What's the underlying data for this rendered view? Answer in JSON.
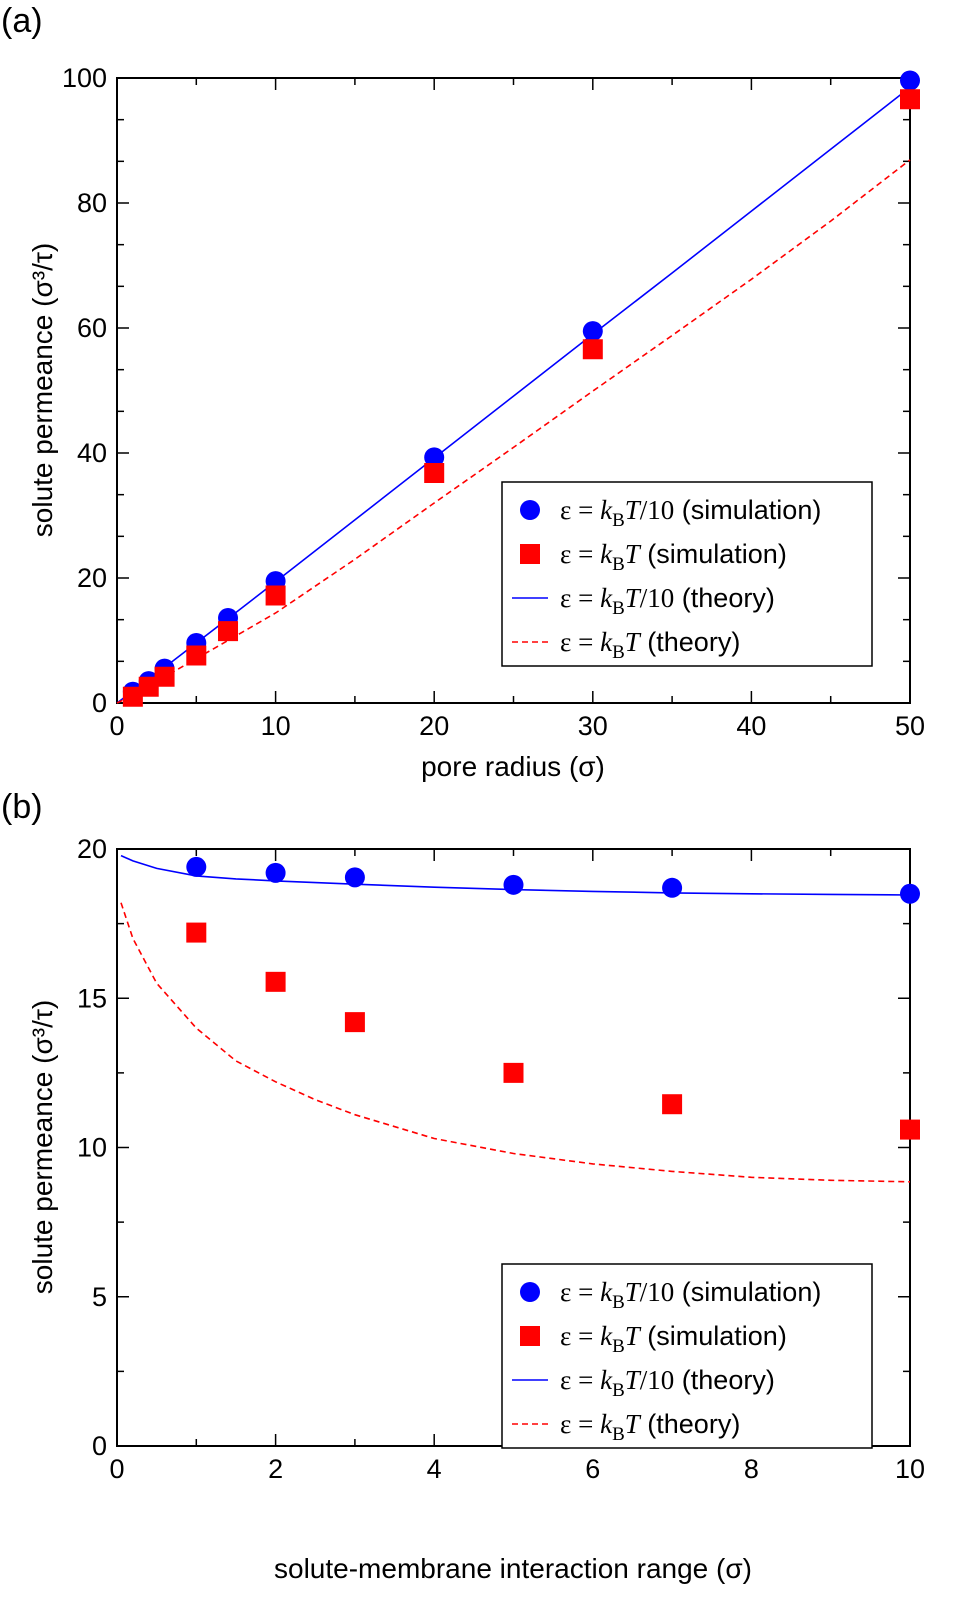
{
  "chart_data": [
    {
      "type": "scatter",
      "panel_label": "(a)",
      "xlabel": "pore radius  (σ)",
      "ylabel": "solute permeance  (σ³/τ)",
      "xlim": [
        0,
        50
      ],
      "ylim": [
        0,
        100
      ],
      "xticks": [
        "0",
        "10",
        "20",
        "30",
        "40",
        "50"
      ],
      "yticks": [
        "0",
        "20",
        "40",
        "60",
        "80",
        "100"
      ],
      "grid": false,
      "legend_position": "bottom-right",
      "series": [
        {
          "name": "ε = kBT/10 (simulation)",
          "kind": "circle",
          "color": "#0000ff",
          "x": [
            1,
            2,
            3,
            5,
            7,
            10,
            20,
            30,
            50
          ],
          "y": [
            1.8,
            3.5,
            5.5,
            9.6,
            13.6,
            19.5,
            39.3,
            59.5,
            99.6
          ]
        },
        {
          "name": "ε = kBT (simulation)",
          "kind": "square",
          "color": "#ff0000",
          "x": [
            1,
            2,
            3,
            5,
            7,
            10,
            20,
            30,
            50
          ],
          "y": [
            1.0,
            2.6,
            4.2,
            7.6,
            11.5,
            17.2,
            36.8,
            56.6,
            96.6
          ]
        },
        {
          "name": "ε = kBT/10 (theory)",
          "kind": "line",
          "color": "#0000ff",
          "x": [
            0,
            1,
            2,
            3,
            5,
            7,
            10,
            15,
            20,
            25,
            30,
            35,
            40,
            45,
            50
          ],
          "y": [
            0,
            1.9,
            3.8,
            5.7,
            9.6,
            13.5,
            19.4,
            29.3,
            39.2,
            49.1,
            59.0,
            68.8,
            78.7,
            88.6,
            98.5
          ]
        },
        {
          "name": "ε = kBT (theory)",
          "kind": "dashed",
          "color": "#ff0000",
          "x": [
            0,
            1,
            2,
            3,
            5,
            7,
            10,
            15,
            20,
            25,
            30,
            35,
            40,
            45,
            50
          ],
          "y": [
            0,
            1.2,
            2.7,
            4.2,
            7.1,
            10.0,
            14.4,
            23.0,
            32.0,
            40.9,
            49.9,
            58.8,
            67.8,
            77.1,
            86.9
          ]
        }
      ],
      "legend": [
        {
          "symbol": "circle",
          "color": "#0000ff",
          "parts": [
            "ε = ",
            "k",
            "B",
            "T",
            "/10",
            " (simulation)"
          ]
        },
        {
          "symbol": "square",
          "color": "#ff0000",
          "parts": [
            "ε = ",
            "k",
            "B",
            "T",
            "",
            " (simulation)"
          ]
        },
        {
          "symbol": "line",
          "color": "#0000ff",
          "parts": [
            "ε = ",
            "k",
            "B",
            "T",
            "/10",
            " (theory)"
          ]
        },
        {
          "symbol": "dashed",
          "color": "#ff0000",
          "parts": [
            "ε = ",
            "k",
            "B",
            "T",
            "",
            " (theory)"
          ]
        }
      ]
    },
    {
      "type": "scatter",
      "panel_label": "(b)",
      "xlabel": "solute-membrane interaction range  (σ)",
      "ylabel": "solute permeance  (σ³/τ)",
      "xlim": [
        0,
        10
      ],
      "ylim": [
        0,
        20
      ],
      "xticks": [
        "0",
        "2",
        "4",
        "6",
        "8",
        "10"
      ],
      "yticks": [
        "0",
        "5",
        "10",
        "15",
        "20"
      ],
      "grid": false,
      "legend_position": "bottom-right",
      "series": [
        {
          "name": "ε = kBT/10 (simulation)",
          "kind": "circle",
          "color": "#0000ff",
          "x": [
            1,
            2,
            3,
            5,
            7,
            10
          ],
          "y": [
            19.4,
            19.2,
            19.05,
            18.8,
            18.7,
            18.5
          ]
        },
        {
          "name": "ε = kBT (simulation)",
          "kind": "square",
          "color": "#ff0000",
          "x": [
            1,
            2,
            3,
            5,
            7,
            10
          ],
          "y": [
            17.2,
            15.55,
            14.2,
            12.5,
            11.45,
            10.6
          ]
        },
        {
          "name": "ε = kBT/10 (theory)",
          "kind": "line",
          "color": "#0000ff",
          "x": [
            0.05,
            0.2,
            0.5,
            1,
            1.5,
            2,
            3,
            4,
            5,
            6,
            7,
            8,
            9,
            10
          ],
          "y": [
            19.78,
            19.6,
            19.35,
            19.1,
            19.0,
            18.93,
            18.82,
            18.72,
            18.64,
            18.58,
            18.53,
            18.5,
            18.48,
            18.46
          ]
        },
        {
          "name": "ε = kBT (theory)",
          "kind": "dashed",
          "color": "#ff0000",
          "x": [
            0.05,
            0.2,
            0.5,
            1,
            1.5,
            2,
            2.5,
            3,
            4,
            5,
            6,
            7,
            8,
            9,
            10
          ],
          "y": [
            18.2,
            17.0,
            15.5,
            14.0,
            12.9,
            12.2,
            11.6,
            11.1,
            10.3,
            9.8,
            9.45,
            9.2,
            9.0,
            8.9,
            8.85
          ]
        }
      ],
      "legend": [
        {
          "symbol": "circle",
          "color": "#0000ff",
          "parts": [
            "ε = ",
            "k",
            "B",
            "T",
            "/10",
            " (simulation)"
          ]
        },
        {
          "symbol": "square",
          "color": "#ff0000",
          "parts": [
            "ε = ",
            "k",
            "B",
            "T",
            "",
            " (simulation)"
          ]
        },
        {
          "symbol": "line",
          "color": "#0000ff",
          "parts": [
            "ε = ",
            "k",
            "B",
            "T",
            "/10",
            " (theory)"
          ]
        },
        {
          "symbol": "dashed",
          "color": "#ff0000",
          "parts": [
            "ε = ",
            "k",
            "B",
            "T",
            "",
            " (theory)"
          ]
        }
      ]
    }
  ]
}
